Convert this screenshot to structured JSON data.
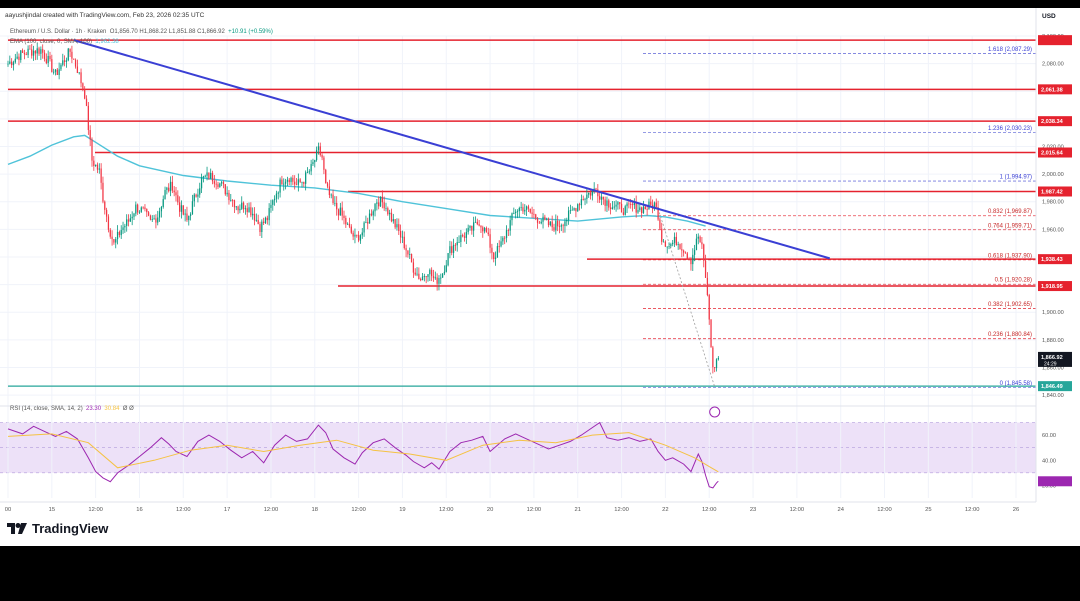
{
  "header": {
    "author_line": "aayushjindal created with TradingView.com, Feb 23, 2026 02:35 UTC"
  },
  "legend": {
    "symbol": "Ethereum / U.S. Dollar · 1h · Kraken",
    "ohlc": "O1,856.70  H1,868.22  L1,851.88  C1,866.92",
    "change": "+10.91 (+0.59%)",
    "ema": "EMA (100, close, 0, SMA, 100)",
    "ema_value": "1,962.38"
  },
  "rsi_legend": {
    "label": "RSI (14, close, SMA, 14, 2)",
    "value": "23.30",
    "ma_value": "30.84",
    "extra": "Ø  Ø"
  },
  "brand": {
    "name": "TradingView"
  },
  "currency": "USD",
  "colors": {
    "up": "#089981",
    "down": "#f23645",
    "trendline": "#3a3fd4",
    "ema": "#4fc3d9",
    "level": "#e5222e",
    "rsi_line": "#9c27b0",
    "rsi_ma": "#f5c242",
    "rsi_band": "#ede1f8",
    "support": "#26a69a"
  },
  "chart_data": {
    "type": "candlestick",
    "title": "Ethereum / U.S. Dollar",
    "timeframe": "1h",
    "exchange": "Kraken",
    "ylim": [
      1835,
      2100
    ],
    "price_ticks": [
      1840,
      1860,
      1880,
      1900,
      1920,
      1940,
      1960,
      1980,
      2000,
      2020,
      2040,
      2060,
      2080,
      2100
    ],
    "price_tick_labels": [
      "1,840.00",
      "1,860.00",
      "1,880.00",
      "1,900.00",
      "1,920.00",
      "1,940.00",
      "1,960.00",
      "1,980.00",
      "2,000.00",
      "2,020.00",
      "2,040.00",
      "2,060.00",
      "2,080.00",
      "2,100.00"
    ],
    "x_range_hours": [
      -4,
      452
    ],
    "x_ticks": [
      {
        "t": 0,
        "label": "00"
      },
      {
        "t": 24,
        "label": "15"
      },
      {
        "t": 48,
        "label": "12:00"
      },
      {
        "t": 72,
        "label": "16"
      },
      {
        "t": 96,
        "label": "12:00"
      },
      {
        "t": 120,
        "label": "17"
      },
      {
        "t": 144,
        "label": "12:00"
      },
      {
        "t": 168,
        "label": "18"
      },
      {
        "t": 192,
        "label": "12:00"
      },
      {
        "t": 216,
        "label": "19"
      },
      {
        "t": 240,
        "label": "12:00"
      },
      {
        "t": 264,
        "label": "20"
      },
      {
        "t": 288,
        "label": "12:00"
      },
      {
        "t": 312,
        "label": "21"
      },
      {
        "t": 336,
        "label": "12:00"
      },
      {
        "t": 360,
        "label": "22"
      },
      {
        "t": 384,
        "label": "12:00"
      },
      {
        "t": 408,
        "label": "23"
      },
      {
        "t": 432,
        "label": "12:00"
      },
      {
        "t": 456,
        "label": "24"
      },
      {
        "t": 480,
        "label": "12:00"
      },
      {
        "t": 504,
        "label": "25"
      },
      {
        "t": 528,
        "label": "12:00"
      },
      {
        "t": 552,
        "label": "26"
      }
    ],
    "horizontal_levels": [
      {
        "price": 2097,
        "label": ""
      },
      {
        "price": 2061.38,
        "label": "2,061.38"
      },
      {
        "price": 2038.34,
        "label": "2,038.34"
      },
      {
        "price": 2015.64,
        "label": "2,015.64"
      },
      {
        "price": 1987.42,
        "label": "1,987.42"
      },
      {
        "price": 1938.43,
        "label": "1,938.43"
      },
      {
        "price": 1918.95,
        "label": "1,918.95"
      }
    ],
    "support_level": {
      "price": 1846.49,
      "label": "1,846.49"
    },
    "current_price": {
      "price": 1866.92,
      "label": "1,866.92",
      "countdown": "24:29"
    },
    "fibonacci": [
      {
        "ratio": "1.618",
        "price": 2087.29,
        "label": "1.618 (2,087.29)"
      },
      {
        "ratio": "1.236",
        "price": 2030.23,
        "label": "1.236 (2,030.23)"
      },
      {
        "ratio": "1",
        "price": 1994.97,
        "label": "1 (1,994.97)"
      },
      {
        "ratio": "0.832",
        "price": 1969.87,
        "label": "0.832 (1,969.87)"
      },
      {
        "ratio": "0.764",
        "price": 1959.71,
        "label": "0.764 (1,959.71)"
      },
      {
        "ratio": "0.618",
        "price": 1937.9,
        "label": "0.618 (1,937.90)"
      },
      {
        "ratio": "0.5",
        "price": 1920.28,
        "label": "0.5 (1,920.28)"
      },
      {
        "ratio": "0.382",
        "price": 1902.65,
        "label": "0.382 (1,902.65)"
      },
      {
        "ratio": "0.236",
        "price": 1880.84,
        "label": "0.236 (1,880.84)"
      },
      {
        "ratio": "0",
        "price": 1845.58,
        "label": "0 (1,845.58)"
      }
    ],
    "trendline": {
      "from": {
        "t": 36,
        "price": 2097
      },
      "to": {
        "t": 450,
        "price": 1939
      }
    },
    "rsi": {
      "ylim": [
        10,
        80
      ],
      "ticks": [
        20,
        40,
        60
      ],
      "band": [
        30,
        70
      ]
    },
    "candle_close_path": [
      [
        0,
        2080
      ],
      [
        6,
        2086
      ],
      [
        12,
        2089
      ],
      [
        18,
        2090
      ],
      [
        22,
        2082
      ],
      [
        26,
        2072
      ],
      [
        30,
        2081
      ],
      [
        34,
        2089
      ],
      [
        38,
        2076
      ],
      [
        42,
        2058
      ],
      [
        46,
        2010
      ],
      [
        50,
        2002
      ],
      [
        52,
        1983
      ],
      [
        55,
        1963
      ],
      [
        58,
        1949
      ],
      [
        62,
        1960
      ],
      [
        66,
        1966
      ],
      [
        70,
        1976
      ],
      [
        74,
        1973
      ],
      [
        78,
        1965
      ],
      [
        82,
        1970
      ],
      [
        86,
        1987
      ],
      [
        90,
        1992
      ],
      [
        94,
        1976
      ],
      [
        98,
        1966
      ],
      [
        102,
        1982
      ],
      [
        106,
        1996
      ],
      [
        110,
        1999
      ],
      [
        114,
        1996
      ],
      [
        118,
        1990
      ],
      [
        122,
        1983
      ],
      [
        126,
        1976
      ],
      [
        130,
        1978
      ],
      [
        134,
        1972
      ],
      [
        138,
        1962
      ],
      [
        142,
        1968
      ],
      [
        146,
        1984
      ],
      [
        150,
        1996
      ],
      [
        154,
        1998
      ],
      [
        158,
        1992
      ],
      [
        162,
        1996
      ],
      [
        166,
        2004
      ],
      [
        170,
        2017
      ],
      [
        172,
        2012
      ],
      [
        174,
        1991
      ],
      [
        178,
        1978
      ],
      [
        182,
        1972
      ],
      [
        186,
        1962
      ],
      [
        190,
        1953
      ],
      [
        194,
        1958
      ],
      [
        198,
        1970
      ],
      [
        202,
        1981
      ],
      [
        206,
        1979
      ],
      [
        210,
        1968
      ],
      [
        214,
        1958
      ],
      [
        218,
        1946
      ],
      [
        222,
        1932
      ],
      [
        226,
        1924
      ],
      [
        230,
        1931
      ],
      [
        234,
        1922
      ],
      [
        238,
        1929
      ],
      [
        242,
        1945
      ],
      [
        246,
        1952
      ],
      [
        250,
        1956
      ],
      [
        254,
        1960
      ],
      [
        258,
        1966
      ],
      [
        262,
        1957
      ],
      [
        266,
        1940
      ],
      [
        270,
        1949
      ],
      [
        274,
        1962
      ],
      [
        278,
        1974
      ],
      [
        282,
        1976
      ],
      [
        286,
        1972
      ],
      [
        290,
        1968
      ],
      [
        294,
        1965
      ],
      [
        298,
        1962
      ],
      [
        302,
        1964
      ],
      [
        306,
        1968
      ],
      [
        310,
        1975
      ],
      [
        314,
        1982
      ],
      [
        318,
        1986
      ],
      [
        322,
        1989
      ],
      [
        326,
        1982
      ],
      [
        330,
        1978
      ],
      [
        334,
        1976
      ],
      [
        338,
        1974
      ],
      [
        342,
        1977
      ],
      [
        346,
        1975
      ],
      [
        350,
        1976
      ],
      [
        354,
        1978
      ],
      [
        356,
        1971
      ],
      [
        358,
        1954
      ],
      [
        362,
        1948
      ],
      [
        366,
        1952
      ],
      [
        370,
        1946
      ],
      [
        374,
        1938
      ],
      [
        378,
        1955
      ],
      [
        380,
        1946
      ],
      [
        382,
        1926
      ],
      [
        384,
        1895
      ],
      [
        386,
        1858
      ],
      [
        388,
        1865
      ],
      [
        389,
        1866.92
      ]
    ],
    "ema_path": [
      [
        0,
        2007
      ],
      [
        12,
        2013
      ],
      [
        24,
        2021
      ],
      [
        36,
        2027
      ],
      [
        42,
        2028
      ],
      [
        48,
        2023
      ],
      [
        60,
        2013
      ],
      [
        72,
        2006
      ],
      [
        96,
        1999
      ],
      [
        120,
        1995
      ],
      [
        144,
        1992
      ],
      [
        168,
        1990
      ],
      [
        192,
        1986
      ],
      [
        216,
        1980
      ],
      [
        240,
        1975
      ],
      [
        264,
        1970
      ],
      [
        288,
        1968
      ],
      [
        312,
        1966
      ],
      [
        336,
        1969
      ],
      [
        350,
        1970
      ],
      [
        360,
        1969
      ],
      [
        372,
        1966
      ],
      [
        382,
        1962.38
      ]
    ],
    "rsi_path": [
      [
        0,
        65
      ],
      [
        8,
        61
      ],
      [
        14,
        67
      ],
      [
        20,
        63
      ],
      [
        26,
        59
      ],
      [
        32,
        63
      ],
      [
        38,
        57
      ],
      [
        44,
        42
      ],
      [
        48,
        31
      ],
      [
        52,
        26
      ],
      [
        56,
        23
      ],
      [
        60,
        30
      ],
      [
        66,
        36
      ],
      [
        72,
        43
      ],
      [
        78,
        50
      ],
      [
        84,
        58
      ],
      [
        88,
        53
      ],
      [
        92,
        47
      ],
      [
        98,
        43
      ],
      [
        104,
        55
      ],
      [
        110,
        60
      ],
      [
        116,
        55
      ],
      [
        122,
        48
      ],
      [
        128,
        42
      ],
      [
        134,
        47
      ],
      [
        140,
        38
      ],
      [
        146,
        52
      ],
      [
        152,
        60
      ],
      [
        158,
        55
      ],
      [
        164,
        57
      ],
      [
        170,
        68
      ],
      [
        174,
        62
      ],
      [
        178,
        49
      ],
      [
        184,
        42
      ],
      [
        190,
        37
      ],
      [
        194,
        46
      ],
      [
        200,
        54
      ],
      [
        206,
        57
      ],
      [
        212,
        50
      ],
      [
        218,
        44
      ],
      [
        222,
        39
      ],
      [
        228,
        34
      ],
      [
        232,
        38
      ],
      [
        236,
        33
      ],
      [
        242,
        47
      ],
      [
        248,
        54
      ],
      [
        254,
        56
      ],
      [
        260,
        59
      ],
      [
        264,
        47
      ],
      [
        268,
        52
      ],
      [
        272,
        57
      ],
      [
        278,
        61
      ],
      [
        284,
        57
      ],
      [
        290,
        53
      ],
      [
        296,
        49
      ],
      [
        302,
        52
      ],
      [
        308,
        55
      ],
      [
        314,
        60
      ],
      [
        320,
        66
      ],
      [
        324,
        70
      ],
      [
        328,
        58
      ],
      [
        334,
        56
      ],
      [
        340,
        58
      ],
      [
        346,
        55
      ],
      [
        352,
        57
      ],
      [
        356,
        47
      ],
      [
        360,
        40
      ],
      [
        364,
        42
      ],
      [
        370,
        37
      ],
      [
        374,
        31
      ],
      [
        378,
        45
      ],
      [
        380,
        39
      ],
      [
        382,
        28
      ],
      [
        384,
        19
      ],
      [
        386,
        18
      ],
      [
        388,
        22
      ],
      [
        389,
        23.3
      ]
    ],
    "rsi_ma_path": [
      [
        0,
        59
      ],
      [
        24,
        61
      ],
      [
        44,
        54
      ],
      [
        60,
        34
      ],
      [
        80,
        40
      ],
      [
        100,
        48
      ],
      [
        120,
        52
      ],
      [
        140,
        47
      ],
      [
        160,
        52
      ],
      [
        180,
        56
      ],
      [
        200,
        48
      ],
      [
        220,
        45
      ],
      [
        240,
        40
      ],
      [
        260,
        52
      ],
      [
        280,
        56
      ],
      [
        300,
        54
      ],
      [
        320,
        60
      ],
      [
        340,
        62
      ],
      [
        360,
        52
      ],
      [
        376,
        42
      ],
      [
        384,
        35
      ],
      [
        389,
        30.84
      ]
    ]
  }
}
